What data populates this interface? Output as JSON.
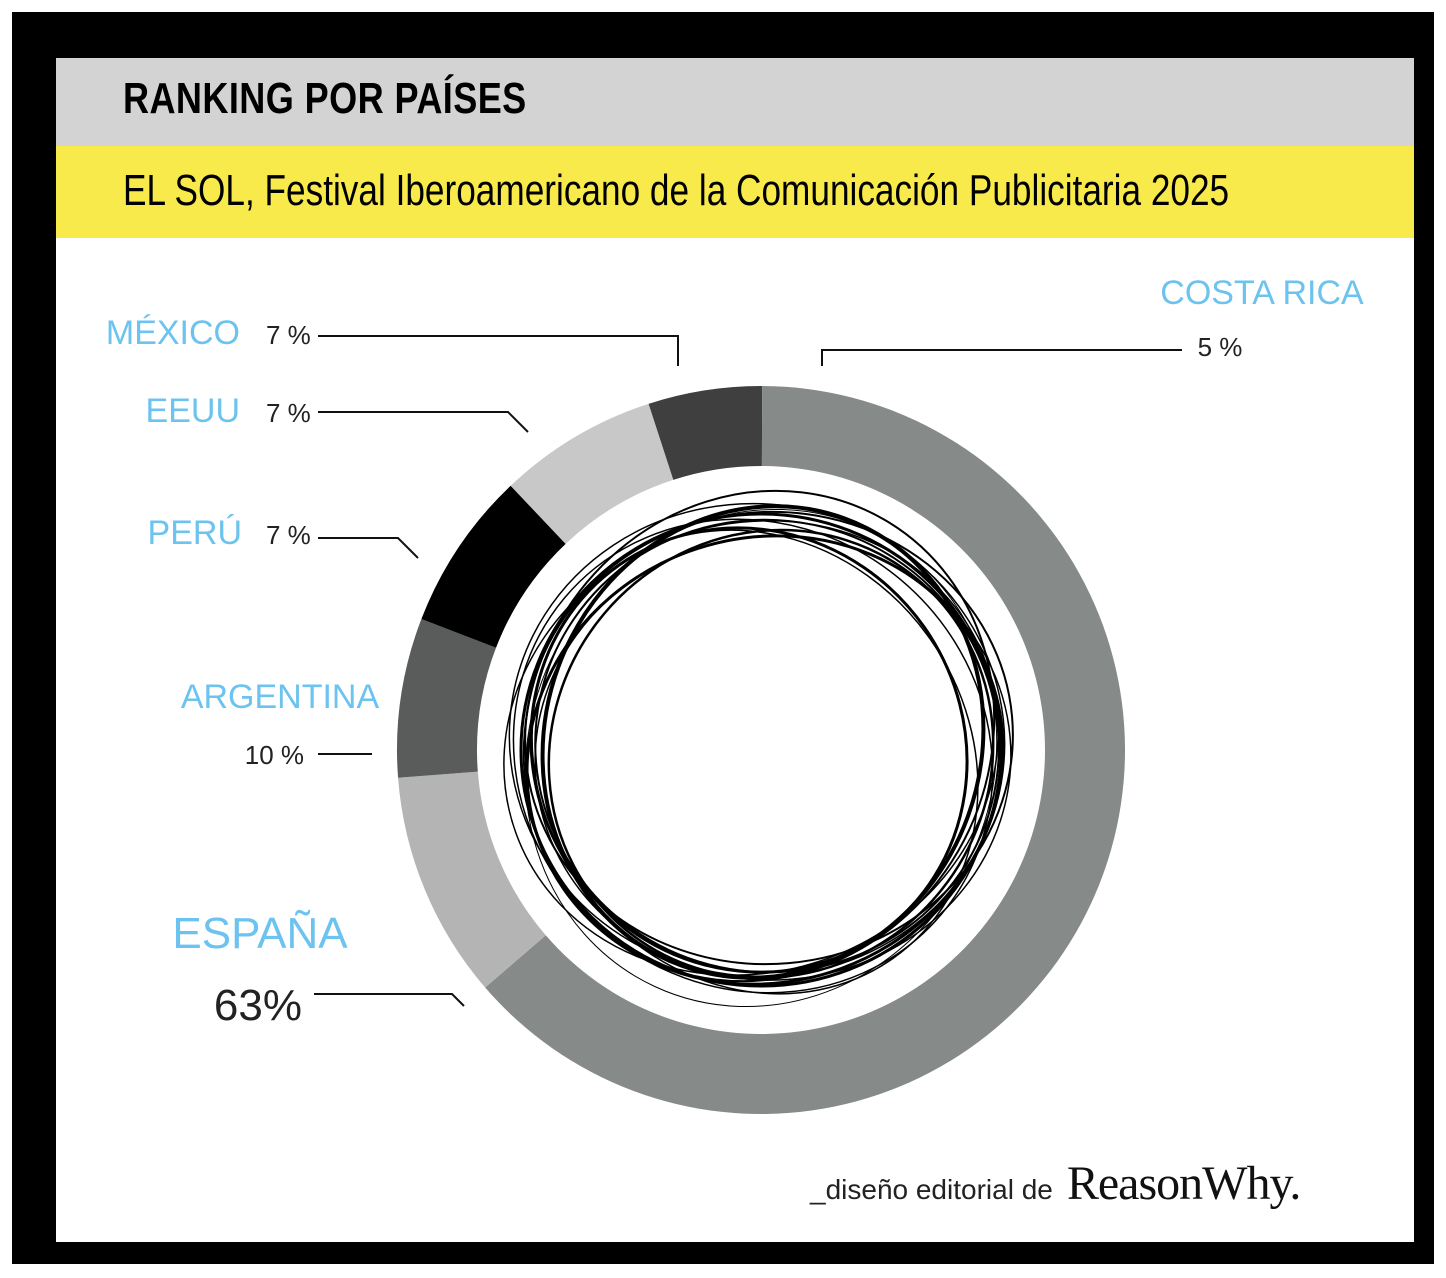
{
  "header": {
    "title": "RANKING POR PAÍSES",
    "subtitle": "EL SOL, Festival Iberoamericano de la Comunicación Publicitaria 2025"
  },
  "colors": {
    "frame": "#000000",
    "title_bg": "#d3d3d3",
    "subtitle_bg": "#f9ea4c",
    "label_blue": "#6cc3ef",
    "value_text": "#222222"
  },
  "chart_data": {
    "type": "pie",
    "style": "donut",
    "categories": [
      "ESPAÑA",
      "ARGENTINA",
      "PERÚ",
      "EEUU",
      "MÉXICO",
      "COSTA RICA"
    ],
    "values": [
      63,
      10,
      7,
      7,
      7,
      5
    ],
    "value_labels": [
      "63%",
      "10 %",
      "7 %",
      "7 %",
      "7 %",
      "5 %"
    ],
    "slice_colors": [
      "#868a88",
      "#b4b4b4",
      "#5a5c5b",
      "#000000",
      "#c8c8c8",
      "#3f3f3f"
    ],
    "legend": "none"
  },
  "footer": {
    "credit": "_diseño editorial de",
    "brand": "ReasonWhy."
  }
}
